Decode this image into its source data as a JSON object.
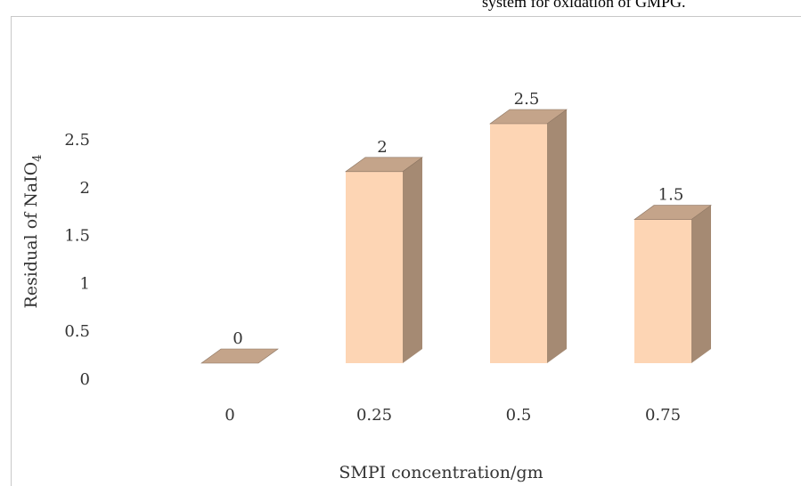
{
  "caption": "system for oxidation of GMPG.",
  "chart_data": {
    "type": "bar",
    "categories": [
      "0",
      "0.25",
      "0.5",
      "0.75"
    ],
    "values": [
      0,
      2,
      2.5,
      1.5
    ],
    "data_labels": [
      "0",
      "2",
      "2.5",
      "1.5"
    ],
    "yticks": [
      "0",
      "0.5",
      "1",
      "1.5",
      "2",
      "2.5"
    ],
    "ylim": [
      0,
      2.5
    ],
    "xlabel": "SMPI concentration/gm",
    "ylabel": "Residual of NaIO",
    "ylabel_subscript": "4",
    "legend": "none",
    "grid": false,
    "colors": {
      "front": "#fdd5b4",
      "side": "#a58a73",
      "top": "#c4a48a",
      "edge": "#8a7360"
    }
  }
}
